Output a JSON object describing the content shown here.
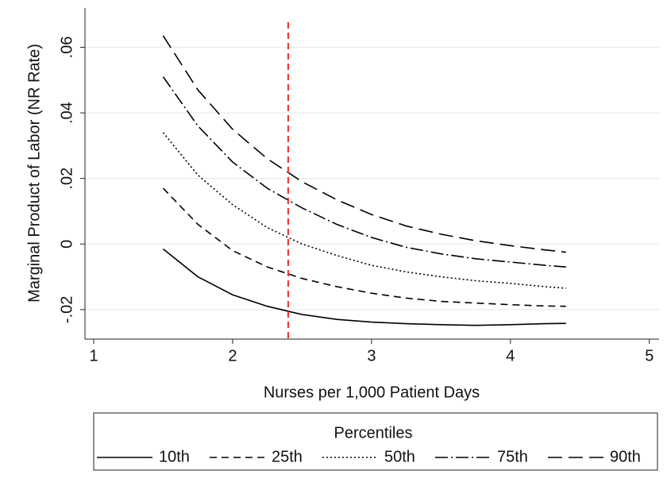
{
  "chart_data": {
    "type": "line",
    "x_label": "Nurses per 1,000 Patient Days",
    "y_label": "Marginal Product of Labor (NR Rate)",
    "legend_title": "Percentiles",
    "legend_position": "bottom",
    "x": [
      1.5,
      1.75,
      2,
      2.25,
      2.5,
      2.75,
      3,
      3.25,
      3.5,
      3.75,
      4,
      4.25,
      4.4
    ],
    "series": [
      {
        "name": "10th",
        "color": "#000000",
        "dash": "none",
        "values": [
          -0.0015,
          -0.01,
          -0.0155,
          -0.019,
          -0.0215,
          -0.023,
          -0.0238,
          -0.0243,
          -0.0246,
          -0.0248,
          -0.0246,
          -0.0243,
          -0.0242
        ]
      },
      {
        "name": "25th",
        "color": "#000000",
        "dash": "9,6",
        "values": [
          0.017,
          0.006,
          -0.002,
          -0.007,
          -0.0105,
          -0.013,
          -0.015,
          -0.0165,
          -0.0175,
          -0.018,
          -0.0185,
          -0.0189,
          -0.019
        ]
      },
      {
        "name": "50th",
        "color": "#000000",
        "dash": "2,3",
        "values": [
          0.034,
          0.021,
          0.012,
          0.005,
          0.0,
          -0.0035,
          -0.0065,
          -0.0085,
          -0.01,
          -0.0112,
          -0.012,
          -0.013,
          -0.0135
        ]
      },
      {
        "name": "75th",
        "color": "#000000",
        "dash": "16,4,2,4",
        "values": [
          0.051,
          0.036,
          0.025,
          0.017,
          0.011,
          0.006,
          0.002,
          -0.001,
          -0.003,
          -0.0045,
          -0.0055,
          -0.0065,
          -0.007
        ]
      },
      {
        "name": "90th",
        "color": "#000000",
        "dash": "18,8",
        "values": [
          0.0635,
          0.047,
          0.035,
          0.026,
          0.019,
          0.0135,
          0.009,
          0.0055,
          0.003,
          0.001,
          -0.0005,
          -0.0018,
          -0.0025
        ]
      }
    ],
    "reference_line": {
      "x": 2.4,
      "color": "#e8302a",
      "dash": "8,5"
    },
    "xlim": [
      0.937,
      5.07
    ],
    "xticks": [
      1,
      2,
      3,
      4,
      5
    ],
    "ylim": [
      -0.029,
      0.072
    ],
    "yticks": [
      {
        "value": -0.02,
        "label": "-.02"
      },
      0,
      {
        "value": 0.02,
        "label": ".02"
      },
      {
        "value": 0.04,
        "label": ".04"
      },
      {
        "value": 0.06,
        "label": ".06"
      }
    ],
    "grid": true
  }
}
